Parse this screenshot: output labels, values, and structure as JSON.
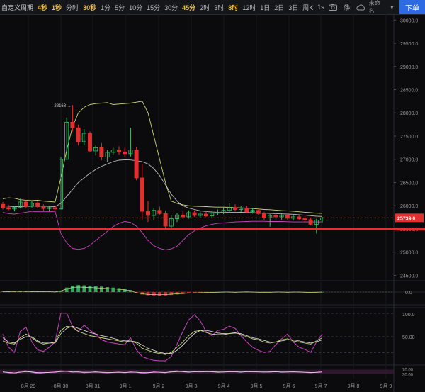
{
  "toolbar": {
    "custom_period": "自定义周期",
    "timeframes": [
      {
        "label": "4秒",
        "fav": true
      },
      {
        "label": "1秒",
        "fav": true
      },
      {
        "label": "分时",
        "fav": false
      },
      {
        "label": "30秒",
        "fav": true
      },
      {
        "label": "1分",
        "fav": false
      },
      {
        "label": "5分",
        "fav": false
      },
      {
        "label": "10分",
        "fav": false
      },
      {
        "label": "15分",
        "fav": false
      },
      {
        "label": "30分",
        "fav": false
      },
      {
        "label": "45分",
        "fav": true
      },
      {
        "label": "2时",
        "fav": false
      },
      {
        "label": "3时",
        "fav": false
      },
      {
        "label": "8时",
        "fav": true
      },
      {
        "label": "12时",
        "fav": false
      },
      {
        "label": "1日",
        "fav": false
      },
      {
        "label": "2日",
        "fav": false
      },
      {
        "label": "3日",
        "fav": false
      },
      {
        "label": "周K",
        "fav": false
      }
    ],
    "interval_1s": "1s",
    "unnamed": "未命名",
    "order_button": "下单"
  },
  "colors": {
    "up": "#39c46b",
    "down": "#e0302f",
    "bb": "#c8d97a",
    "bb_lower": "#c845c0",
    "support": "#e53030"
  },
  "price_axis": {
    "ticks": [
      "30000.0",
      "29500.0",
      "29000.0",
      "28500.0",
      "28000.0",
      "27500.0",
      "27000.0",
      "26500.0",
      "26000.0",
      "25500.0",
      "25000.0",
      "24500.0"
    ],
    "current_price": "25739.0"
  },
  "annotations": {
    "high_label": "28168"
  },
  "macd_axis": {
    "ticks": [
      "0.0"
    ]
  },
  "rsi_axis": {
    "ticks": [
      "100.0",
      "50.00"
    ]
  },
  "stoch_axis": {
    "ticks": [
      "70.00",
      "30.00"
    ]
  },
  "time_axis": {
    "ticks": [
      "8月 29",
      "8月 30",
      "8月 31",
      "9月 1",
      "9月 2",
      "9月 3",
      "9月 4",
      "9月 5",
      "9月 6",
      "9月 7",
      "9月 8",
      "9月 9"
    ]
  },
  "chart_data": {
    "type": "candlestick",
    "yrange": [
      24400,
      30050
    ],
    "x_categories": [
      "8月 29",
      "8月 30",
      "8月 31",
      "9月 1",
      "9月 2",
      "9月 3",
      "9月 4",
      "9月 5",
      "9月 6",
      "9月 7",
      "9月 8",
      "9月 9"
    ],
    "candles": [
      {
        "o": 26030,
        "h": 26080,
        "l": 25920,
        "c": 25960
      },
      {
        "o": 25960,
        "h": 26020,
        "l": 25900,
        "c": 25930
      },
      {
        "o": 25930,
        "h": 26000,
        "l": 25880,
        "c": 25970
      },
      {
        "o": 25970,
        "h": 26150,
        "l": 25950,
        "c": 26080
      },
      {
        "o": 26080,
        "h": 26120,
        "l": 25950,
        "c": 25990
      },
      {
        "o": 25990,
        "h": 26100,
        "l": 25960,
        "c": 26060
      },
      {
        "o": 26060,
        "h": 26110,
        "l": 25950,
        "c": 25980
      },
      {
        "o": 25980,
        "h": 26030,
        "l": 25890,
        "c": 25940
      },
      {
        "o": 25940,
        "h": 26000,
        "l": 25880,
        "c": 25960
      },
      {
        "o": 25960,
        "h": 26000,
        "l": 25900,
        "c": 25930
      },
      {
        "o": 25930,
        "h": 27050,
        "l": 25920,
        "c": 27000
      },
      {
        "o": 27000,
        "h": 27900,
        "l": 26980,
        "c": 27800
      },
      {
        "o": 27800,
        "h": 28168,
        "l": 27600,
        "c": 27680
      },
      {
        "o": 27680,
        "h": 27750,
        "l": 27300,
        "c": 27380
      },
      {
        "o": 27380,
        "h": 27650,
        "l": 27300,
        "c": 27560
      },
      {
        "o": 27560,
        "h": 27600,
        "l": 27150,
        "c": 27180
      },
      {
        "o": 27180,
        "h": 27300,
        "l": 27080,
        "c": 27250
      },
      {
        "o": 27250,
        "h": 27350,
        "l": 26980,
        "c": 27050
      },
      {
        "o": 27050,
        "h": 27200,
        "l": 26950,
        "c": 27150
      },
      {
        "o": 27150,
        "h": 27250,
        "l": 27100,
        "c": 27200
      },
      {
        "o": 27200,
        "h": 27280,
        "l": 27100,
        "c": 27160
      },
      {
        "o": 27160,
        "h": 27250,
        "l": 27050,
        "c": 27120
      },
      {
        "o": 27120,
        "h": 27680,
        "l": 27060,
        "c": 27200
      },
      {
        "o": 27200,
        "h": 27260,
        "l": 26550,
        "c": 26600
      },
      {
        "o": 26600,
        "h": 26900,
        "l": 25700,
        "c": 25880
      },
      {
        "o": 25880,
        "h": 26100,
        "l": 25650,
        "c": 25790
      },
      {
        "o": 25790,
        "h": 25950,
        "l": 25700,
        "c": 25900
      },
      {
        "o": 25900,
        "h": 25980,
        "l": 25800,
        "c": 25830
      },
      {
        "o": 25830,
        "h": 25900,
        "l": 25500,
        "c": 25560
      },
      {
        "o": 25560,
        "h": 25800,
        "l": 25500,
        "c": 25720
      },
      {
        "o": 25720,
        "h": 25850,
        "l": 25650,
        "c": 25800
      },
      {
        "o": 25800,
        "h": 25880,
        "l": 25720,
        "c": 25760
      },
      {
        "o": 25760,
        "h": 25900,
        "l": 25720,
        "c": 25850
      },
      {
        "o": 25850,
        "h": 25900,
        "l": 25760,
        "c": 25790
      },
      {
        "o": 25790,
        "h": 25880,
        "l": 25740,
        "c": 25820
      },
      {
        "o": 25820,
        "h": 25890,
        "l": 25760,
        "c": 25780
      },
      {
        "o": 25780,
        "h": 25880,
        "l": 25740,
        "c": 25840
      },
      {
        "o": 25840,
        "h": 25920,
        "l": 25800,
        "c": 25860
      },
      {
        "o": 25860,
        "h": 25960,
        "l": 25820,
        "c": 25900
      },
      {
        "o": 25900,
        "h": 26050,
        "l": 25860,
        "c": 25960
      },
      {
        "o": 25960,
        "h": 26030,
        "l": 25880,
        "c": 25920
      },
      {
        "o": 25920,
        "h": 26000,
        "l": 25860,
        "c": 25950
      },
      {
        "o": 25950,
        "h": 26000,
        "l": 25840,
        "c": 25870
      },
      {
        "o": 25870,
        "h": 25950,
        "l": 25830,
        "c": 25900
      },
      {
        "o": 25900,
        "h": 25940,
        "l": 25800,
        "c": 25830
      },
      {
        "o": 25830,
        "h": 25870,
        "l": 25700,
        "c": 25740
      },
      {
        "o": 25740,
        "h": 25820,
        "l": 25550,
        "c": 25790
      },
      {
        "o": 25790,
        "h": 25830,
        "l": 25700,
        "c": 25760
      },
      {
        "o": 25760,
        "h": 25820,
        "l": 25700,
        "c": 25790
      },
      {
        "o": 25790,
        "h": 25820,
        "l": 25700,
        "c": 25730
      },
      {
        "o": 25730,
        "h": 25800,
        "l": 25680,
        "c": 25760
      },
      {
        "o": 25760,
        "h": 25800,
        "l": 25690,
        "c": 25720
      },
      {
        "o": 25720,
        "h": 25780,
        "l": 25650,
        "c": 25700
      },
      {
        "o": 25700,
        "h": 25740,
        "l": 25580,
        "c": 25600
      },
      {
        "o": 25600,
        "h": 25720,
        "l": 25400,
        "c": 25690
      },
      {
        "o": 25690,
        "h": 25760,
        "l": 25640,
        "c": 25739
      }
    ],
    "bb_upper": [
      26150,
      26170,
      26160,
      26130,
      26120,
      26110,
      26120,
      26100,
      26090,
      26080,
      26600,
      27200,
      27700,
      28000,
      28120,
      28180,
      28200,
      28210,
      28220,
      28180,
      28190,
      28200,
      28210,
      28230,
      28250,
      28000,
      27500,
      27000,
      26500,
      26100,
      26050,
      26020,
      26000,
      25990,
      25985,
      25980,
      25975,
      25970,
      25970,
      25965,
      25960,
      25955,
      25950,
      25940,
      25930,
      25920,
      25915,
      25905,
      25895,
      25890,
      25880,
      25870,
      25860,
      25850,
      25840,
      25835
    ],
    "bb_mid": [
      26000,
      25990,
      25980,
      25980,
      25985,
      25990,
      25995,
      25990,
      25985,
      25980,
      26050,
      26200,
      26350,
      26500,
      26600,
      26700,
      26780,
      26850,
      26900,
      26950,
      26980,
      26990,
      26985,
      26970,
      26950,
      26900,
      26800,
      26650,
      26450,
      26250,
      26100,
      26000,
      25950,
      25920,
      25890,
      25875,
      25865,
      25860,
      25860,
      25860,
      25860,
      25858,
      25855,
      25850,
      25845,
      25840,
      25835,
      25830,
      25825,
      25820,
      25815,
      25805,
      25795,
      25785,
      25775,
      25770
    ],
    "bb_lower": [
      25860,
      25830,
      25820,
      25840,
      25860,
      25880,
      25870,
      25870,
      25870,
      25880,
      25400,
      25200,
      25080,
      25060,
      25080,
      25150,
      25250,
      25350,
      25450,
      25550,
      25620,
      25660,
      25640,
      25560,
      25420,
      25250,
      25140,
      25080,
      25050,
      25070,
      25130,
      25250,
      25380,
      25460,
      25520,
      25570,
      25600,
      25620,
      25630,
      25640,
      25650,
      25655,
      25660,
      25665,
      25665,
      25665,
      25660,
      25660,
      25660,
      25655,
      25650,
      25650,
      25650,
      25650,
      25650,
      25650
    ],
    "support_level": 25500,
    "macd_hist": [
      2,
      3,
      4,
      5,
      4,
      3,
      3,
      2,
      2,
      1,
      6,
      18,
      26,
      28,
      27,
      26,
      24,
      22,
      20,
      18,
      16,
      12,
      8,
      -4,
      -10,
      -13,
      -14,
      -15,
      -14,
      -12,
      -10,
      -8,
      -6,
      -5,
      -4,
      -3,
      -2,
      -1,
      0,
      0,
      -1,
      0,
      1,
      0,
      -1,
      -1,
      -1,
      0,
      0,
      -1,
      0,
      0,
      -1,
      -2,
      -1,
      0
    ],
    "rsi_main": [
      42,
      38,
      36,
      48,
      55,
      48,
      40,
      36,
      38,
      40,
      62,
      70,
      68,
      60,
      56,
      52,
      50,
      48,
      46,
      44,
      42,
      40,
      42,
      38,
      28,
      24,
      20,
      18,
      16,
      20,
      30,
      40,
      52,
      60,
      62,
      58,
      55,
      54,
      54,
      56,
      58,
      54,
      50,
      46,
      44,
      40,
      38,
      40,
      44,
      46,
      42,
      40,
      38,
      36,
      42,
      48
    ],
    "rsi_fast": [
      55,
      30,
      20,
      60,
      68,
      40,
      25,
      22,
      30,
      40,
      95,
      95,
      70,
      60,
      72,
      62,
      55,
      44,
      40,
      38,
      36,
      35,
      48,
      25,
      12,
      8,
      5,
      4,
      4,
      12,
      36,
      60,
      82,
      92,
      80,
      60,
      52,
      62,
      64,
      70,
      66,
      52,
      40,
      30,
      24,
      20,
      22,
      35,
      46,
      55,
      40,
      30,
      26,
      20,
      40,
      55
    ],
    "rsi_slow": [
      48,
      40,
      38,
      45,
      50,
      50,
      42,
      38,
      38,
      38,
      56,
      66,
      70,
      66,
      62,
      58,
      55,
      52,
      50,
      47,
      44,
      42,
      42,
      40,
      34,
      28,
      24,
      20,
      18,
      18,
      24,
      34,
      46,
      56,
      62,
      62,
      60,
      57,
      56,
      56,
      57,
      56,
      52,
      48,
      46,
      43,
      40,
      40,
      42,
      44,
      44,
      42,
      40,
      38,
      40,
      44
    ],
    "stoch_k": [
      50,
      40,
      30,
      55,
      60,
      45,
      35,
      40,
      45,
      50,
      60,
      55,
      45,
      50,
      40,
      45,
      50,
      42,
      38,
      44,
      48,
      40,
      50,
      45,
      35,
      40,
      50,
      45,
      40,
      55,
      60,
      50,
      45,
      52,
      48,
      55,
      50,
      44,
      48,
      52,
      50,
      45,
      55,
      50,
      48,
      46,
      50,
      52,
      45,
      48,
      50,
      46,
      44,
      40,
      46,
      50
    ],
    "stoch_d": [
      48,
      44,
      40,
      46,
      52,
      48,
      42,
      42,
      44,
      46,
      52,
      54,
      50,
      48,
      46,
      46,
      48,
      46,
      44,
      44,
      46,
      44,
      46,
      46,
      42,
      42,
      46,
      46,
      44,
      48,
      52,
      52,
      48,
      49,
      49,
      51,
      51,
      48,
      48,
      50,
      50,
      48,
      50,
      50,
      49,
      48,
      48,
      50,
      48,
      48,
      49,
      48,
      46,
      44,
      45,
      47
    ]
  }
}
